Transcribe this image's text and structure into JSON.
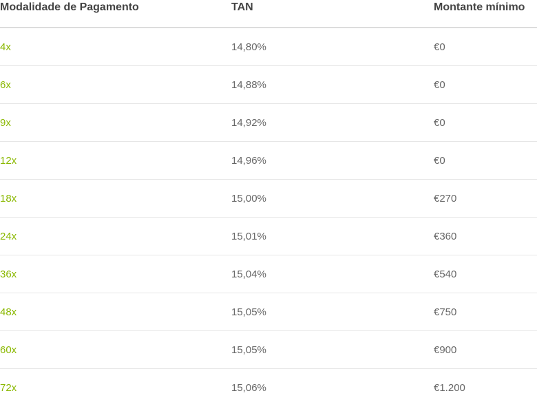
{
  "table": {
    "header": [
      "Modalidade de Pagamento",
      "TAN",
      "Montante mínimo"
    ],
    "rows": [
      [
        "4x",
        "14,80%",
        "€0"
      ],
      [
        "6x",
        "14,88%",
        "€0"
      ],
      [
        "9x",
        "14,92%",
        "€0"
      ],
      [
        "12x",
        "14,96%",
        "€0"
      ],
      [
        "18x",
        "15,00%",
        "€270"
      ],
      [
        "24x",
        "15,01%",
        "€360"
      ],
      [
        "36x",
        "15,04%",
        "€540"
      ],
      [
        "48x",
        "15,05%",
        "€750"
      ],
      [
        "60x",
        "15,05%",
        "€900"
      ],
      [
        "72x",
        "15,06%",
        "€1.200"
      ]
    ]
  }
}
